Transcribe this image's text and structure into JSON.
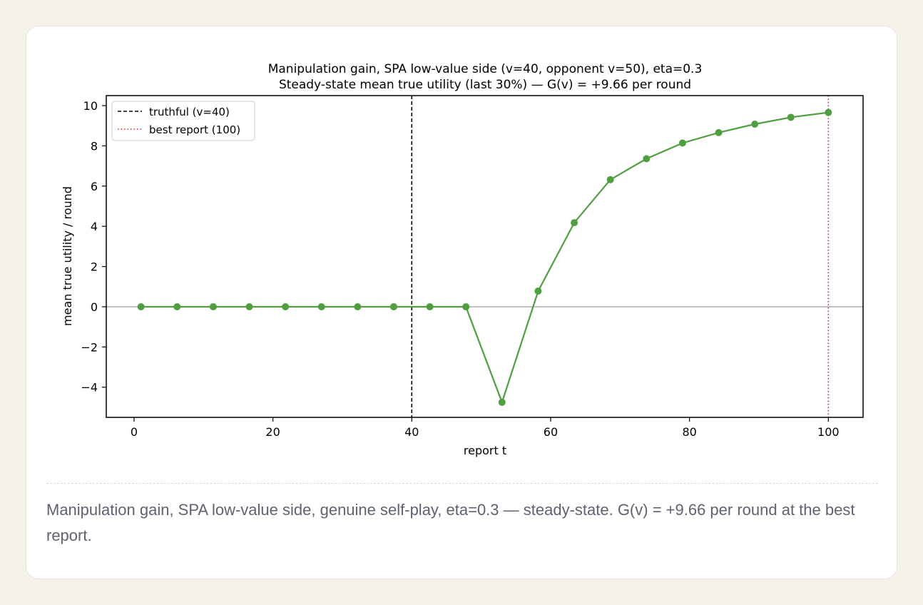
{
  "caption": "Manipulation gain, SPA low-value side, genuine self-play, eta=0.3 — steady-state. G(v) = +9.66 per round at the best report.",
  "chart_data": {
    "type": "line",
    "title": "Manipulation gain, SPA low-value side (v=40, opponent v=50), eta=0.3",
    "subtitle": "Steady-state mean true utility (last 30%)  —  G(v) = +9.66 per round",
    "xlabel": "report t",
    "ylabel": "mean true utility / round",
    "xlim": [
      -4,
      105
    ],
    "ylim": [
      -5.5,
      10.5
    ],
    "x_ticks": [
      0,
      20,
      40,
      60,
      80,
      100
    ],
    "y_ticks": [
      -4,
      -2,
      0,
      2,
      4,
      6,
      8,
      10
    ],
    "grid": false,
    "legend_position": "top-left",
    "series": [
      {
        "x": [
          1,
          6.2,
          11.4,
          16.6,
          21.8,
          27,
          32.2,
          37.4,
          42.6,
          47.8,
          53,
          58.2,
          63.4,
          68.6,
          73.8,
          79,
          84.2,
          89.4,
          94.6,
          100
        ],
        "values": [
          0,
          0,
          0,
          0,
          0,
          0,
          0,
          0,
          0,
          0,
          -4.75,
          0.78,
          4.18,
          6.32,
          7.36,
          8.14,
          8.66,
          9.08,
          9.42,
          9.66
        ],
        "color": "#4f9e3f"
      }
    ],
    "reference_lines": [
      {
        "orientation": "horizontal",
        "value": 0,
        "color": "#999999",
        "style": "solid"
      },
      {
        "orientation": "vertical",
        "value": 40,
        "color": "#000000",
        "style": "dashed",
        "label": "truthful (v=40)"
      },
      {
        "orientation": "vertical",
        "value": 100,
        "color": "#d62728",
        "style": "dotted",
        "label": "best report (100)"
      }
    ]
  }
}
